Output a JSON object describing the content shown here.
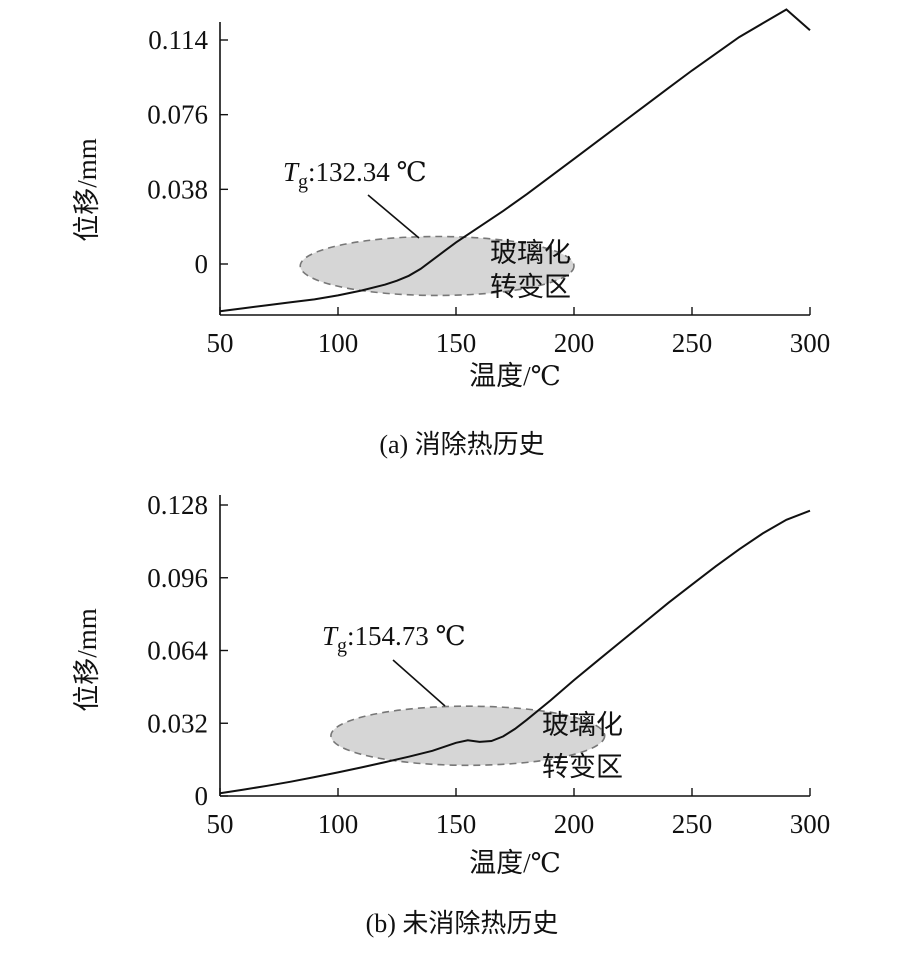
{
  "chart_data": [
    {
      "type": "line",
      "caption": "(a) 消除热历史",
      "xlabel": "温度/℃",
      "ylabel": "位移/mm",
      "xlim": [
        50,
        300
      ],
      "ylim": [
        -0.021,
        0.121
      ],
      "xticks": [
        "50",
        "100",
        "150",
        "200",
        "250",
        "300"
      ],
      "yticks": [
        "0",
        "0.038",
        "0.076",
        "0.114"
      ],
      "tg_label": "132.34 ℃",
      "region_label_1": "玻璃化",
      "region_label_2": "转变区",
      "region": {
        "x_center": 142,
        "y_center": -0.001,
        "x_halfwidth": 58,
        "y_halfheight": 0.015
      },
      "tg_point": [
        132.34,
        0.0
      ],
      "series": [
        {
          "x": [
            50,
            60,
            70,
            80,
            90,
            100,
            110,
            120,
            125,
            130,
            135,
            140,
            145,
            150,
            160,
            170,
            180,
            190,
            200,
            210,
            220,
            230,
            240,
            250,
            260,
            270,
            280,
            290,
            300
          ],
          "y": [
            -0.024,
            -0.0225,
            -0.021,
            -0.0195,
            -0.018,
            -0.016,
            -0.0135,
            -0.0105,
            -0.0085,
            -0.006,
            -0.0025,
            0.002,
            0.0065,
            0.011,
            0.019,
            0.027,
            0.0355,
            0.0445,
            0.0535,
            0.0625,
            0.0715,
            0.0805,
            0.0895,
            0.0985,
            0.107,
            0.1155,
            0.1225,
            0.1295,
            0.12
          ]
        }
      ]
    },
    {
      "type": "line",
      "caption": "(b) 未消除热历史",
      "xlabel": "温度/℃",
      "ylabel": "位移/mm",
      "xlim": [
        50,
        300
      ],
      "ylim": [
        0,
        0.128
      ],
      "xticks": [
        "50",
        "100",
        "150",
        "200",
        "250",
        "300"
      ],
      "yticks": [
        "0",
        "0.032",
        "0.064",
        "0.096",
        "0.128"
      ],
      "tg_label": "154.73 ℃",
      "region_label_1": "玻璃化",
      "region_label_2": "转变区",
      "region": {
        "x_center": 155,
        "y_center": 0.0265,
        "x_halfwidth": 58,
        "y_halfheight": 0.013
      },
      "tg_point": [
        154.73,
        0.0245
      ],
      "series": [
        {
          "x": [
            50,
            60,
            70,
            80,
            90,
            100,
            110,
            120,
            130,
            140,
            150,
            155,
            160,
            165,
            170,
            175,
            180,
            190,
            200,
            210,
            220,
            230,
            240,
            250,
            260,
            270,
            280,
            290,
            300
          ],
          "y": [
            0.0012,
            0.0028,
            0.0045,
            0.0063,
            0.0083,
            0.0104,
            0.0126,
            0.0149,
            0.0173,
            0.0199,
            0.0234,
            0.0245,
            0.0238,
            0.0242,
            0.0262,
            0.0295,
            0.0335,
            0.042,
            0.051,
            0.0595,
            0.068,
            0.0765,
            0.085,
            0.093,
            0.101,
            0.1085,
            0.1155,
            0.1215,
            0.1255
          ]
        }
      ]
    }
  ]
}
